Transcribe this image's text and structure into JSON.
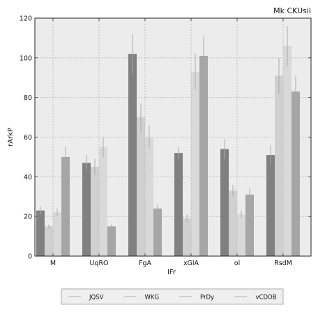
{
  "chart_data": {
    "type": "bar",
    "title": "Mk CKUsil",
    "xlabel": "lFr",
    "ylabel": "rArkP",
    "categories": [
      "M",
      "UqRO",
      "FgA",
      "xGlA",
      "ol",
      "RsdM"
    ],
    "series": [
      {
        "name": "JQSV",
        "color": "#808080",
        "values": [
          23,
          47,
          102,
          52,
          54,
          51
        ],
        "errors": [
          2,
          4,
          10,
          3,
          5,
          5
        ]
      },
      {
        "name": "WKG",
        "color": "#d0d0d0",
        "values": [
          15,
          45,
          70,
          19,
          33,
          91
        ],
        "errors": [
          1,
          4,
          7,
          2,
          3,
          9
        ]
      },
      {
        "name": "PrDy",
        "color": "#d9d9d9",
        "values": [
          22,
          55,
          60,
          93,
          21,
          106
        ],
        "errors": [
          2,
          5,
          6,
          9,
          2,
          10
        ]
      },
      {
        "name": "vCDOB",
        "color": "#a6a6a6",
        "values": [
          50,
          15,
          24,
          101,
          31,
          83
        ],
        "errors": [
          5,
          1,
          2,
          10,
          3,
          8
        ]
      }
    ],
    "ylim": [
      0,
      120
    ],
    "yticks": [
      0,
      20,
      40,
      60,
      80,
      100,
      120
    ],
    "grid": true,
    "legend_position": "bottom"
  }
}
